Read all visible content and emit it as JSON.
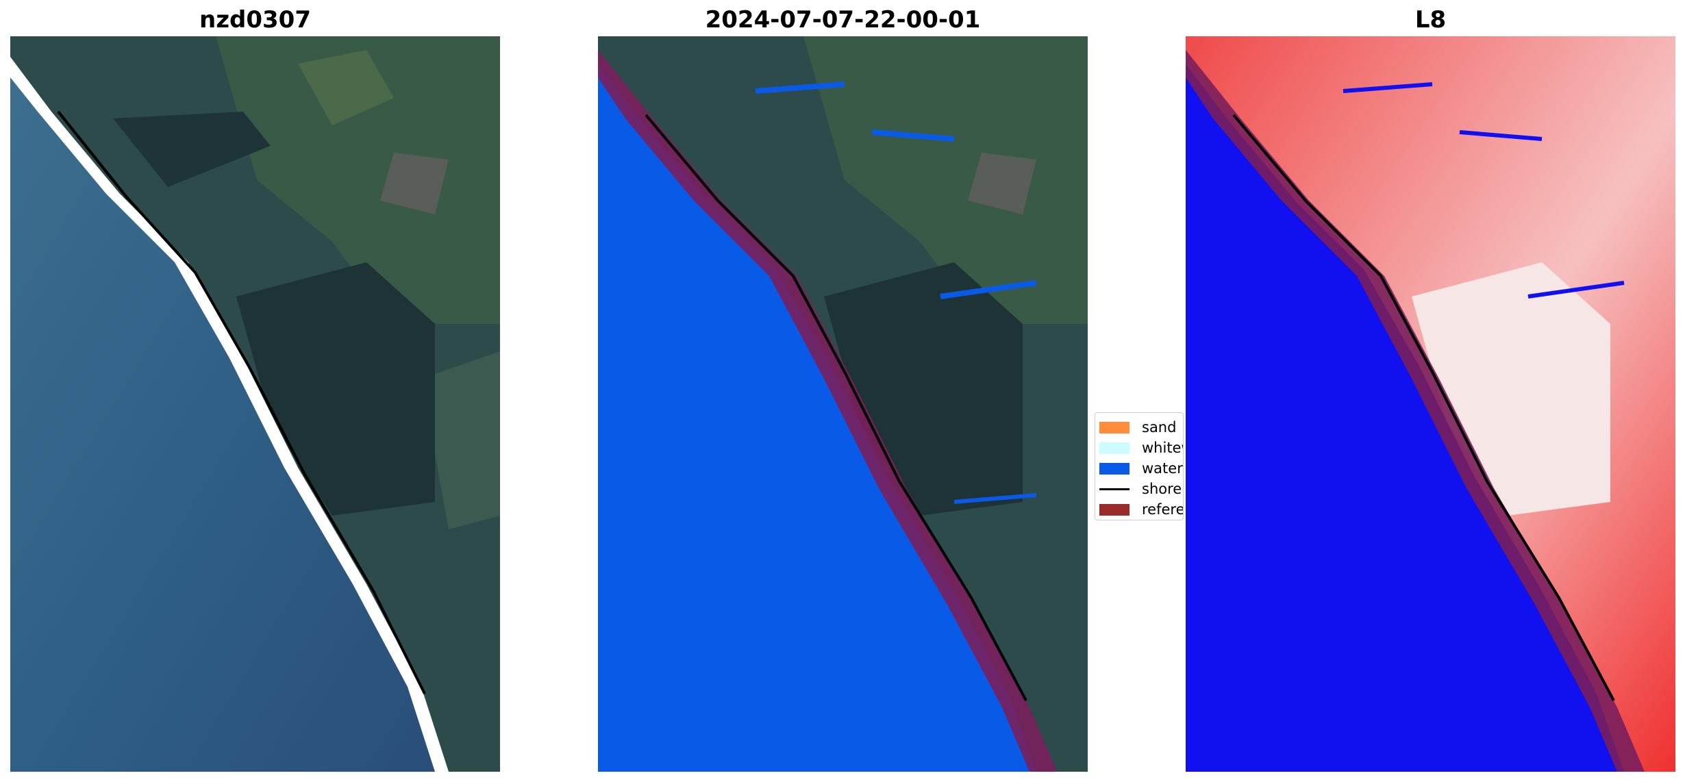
{
  "panels": [
    {
      "title": "nzd0307"
    },
    {
      "title": "2024-07-07-22-00-01"
    },
    {
      "title": "L8"
    }
  ],
  "legend": {
    "items": [
      {
        "label": "sand",
        "color": "#ff8c3a",
        "kind": "patch"
      },
      {
        "label": "whitew",
        "color": "#ccfcff",
        "kind": "patch"
      },
      {
        "label": "water",
        "color": "#0a5ae8",
        "kind": "patch"
      },
      {
        "label": "shorel",
        "color": "#000000",
        "kind": "line"
      },
      {
        "label": "referen",
        "color": "#9a2a2a",
        "kind": "patch"
      }
    ]
  },
  "colors": {
    "ocean": "#2f5f86",
    "land": "#2d4a45",
    "classified_water": "#0a5ae8",
    "reference_buffer": "#7a1f5c",
    "index_water": "#1010f0",
    "index_land": "#f03030"
  }
}
